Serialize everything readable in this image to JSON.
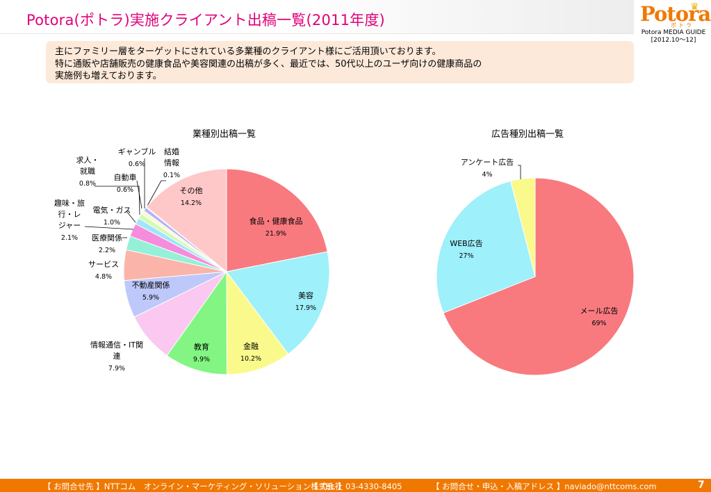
{
  "header": {
    "title": "Potora(ポトラ)実施クライアント出稿一覧(2011年度)",
    "logo": "Potora",
    "logo_kana": "ポトラ",
    "guide_line1": "Potora MEDIA GUIDE",
    "guide_line2": "[2012.10～12]"
  },
  "intro": {
    "line1": "主にファミリー層をターゲットにされている多業種のクライアント様にご活用頂いております。",
    "line2": "特に通販や店舗販売の健康食品や美容関連の出稿が多く、最近では、50代以上のユーザ向けの健康商品の",
    "line3": "実施例も増えております。"
  },
  "chart_data": [
    {
      "type": "pie",
      "title": "業種別出稿一覧",
      "slices": [
        {
          "label": "食品・健康食品",
          "value": 21.9,
          "display": "21.9%",
          "color": "#f87a7f"
        },
        {
          "label": "美容",
          "value": 17.9,
          "display": "17.9%",
          "color": "#9ef0fa"
        },
        {
          "label": "金融",
          "value": 10.2,
          "display": "10.2%",
          "color": "#fafa8c"
        },
        {
          "label": "教育",
          "value": 9.9,
          "display": "9.9%",
          "color": "#82f582"
        },
        {
          "label": "情報通信・IT関連",
          "value": 7.9,
          "display": "7.9%",
          "color": "#fac8f0"
        },
        {
          "label": "不動産関係",
          "value": 5.9,
          "display": "5.9%",
          "color": "#bec8fa"
        },
        {
          "label": "サービス",
          "value": 4.8,
          "display": "4.8%",
          "color": "#fab4aa"
        },
        {
          "label": "医療関係",
          "value": 2.2,
          "display": "2.2%",
          "color": "#96f0d7"
        },
        {
          "label": "趣味・旅行・レジャー",
          "value": 2.1,
          "display": "2.1%",
          "color": "#f58cdc"
        },
        {
          "label": "電気・ガス",
          "value": 1.0,
          "display": "1.0%",
          "color": "#a0e6fa"
        },
        {
          "label": "求人・就職",
          "value": 0.8,
          "display": "0.8%",
          "color": "#d2fab4"
        },
        {
          "label": "自動車",
          "value": 0.6,
          "display": "0.6%",
          "color": "#fafad2"
        },
        {
          "label": "ギャンブル",
          "value": 0.6,
          "display": "0.6%",
          "color": "#b4b4fa"
        },
        {
          "label": "結婚情報",
          "value": 0.1,
          "display": "0.1%",
          "color": "#f5c8dc"
        },
        {
          "label": "その他",
          "value": 14.2,
          "display": "14.2%",
          "color": "#ffc8c8"
        }
      ]
    },
    {
      "type": "pie",
      "title": "広告種別出稿一覧",
      "slices": [
        {
          "label": "メール広告",
          "value": 69,
          "display": "69%",
          "color": "#f87a7f"
        },
        {
          "label": "WEB広告",
          "value": 27,
          "display": "27%",
          "color": "#9ef0fa"
        },
        {
          "label": "アンケート広告",
          "value": 4,
          "display": "4%",
          "color": "#fafa8c"
        }
      ]
    }
  ],
  "footer": {
    "contact": "【 お問合せ先 】NTTコム　オンライン・マーケティング・ソリューション株式会社",
    "tel": "【 TEL 】03-4330-8405",
    "mail": "【 お問合せ・申込・入稿アドレス 】naviado@nttcoms.com",
    "page": "7"
  }
}
